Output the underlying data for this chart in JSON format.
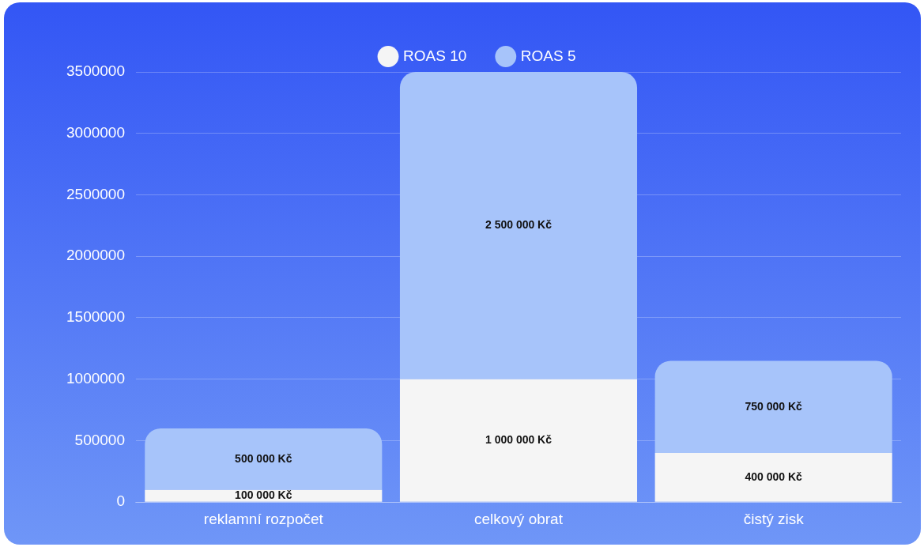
{
  "chart_data": {
    "type": "bar",
    "stacked": true,
    "categories": [
      "reklamní rozpočet",
      "celkový obrat",
      "čistý zisk"
    ],
    "series": [
      {
        "name": "ROAS 10",
        "color": "#f5f5f5",
        "values": [
          100000,
          1000000,
          400000
        ],
        "value_labels": [
          "100 000 Kč",
          "1 000 000 Kč",
          "400 000 Kč"
        ]
      },
      {
        "name": "ROAS 5",
        "color": "#a7c4fa",
        "values": [
          500000,
          2500000,
          750000
        ],
        "value_labels": [
          "500 000 Kč",
          "2 500 000 Kč",
          "750 000 Kč"
        ]
      }
    ],
    "ylim": [
      0,
      3500000
    ],
    "yticks": [
      0,
      500000,
      1000000,
      1500000,
      2000000,
      2500000,
      3000000,
      3500000
    ],
    "grid": "y",
    "legend": "top"
  }
}
